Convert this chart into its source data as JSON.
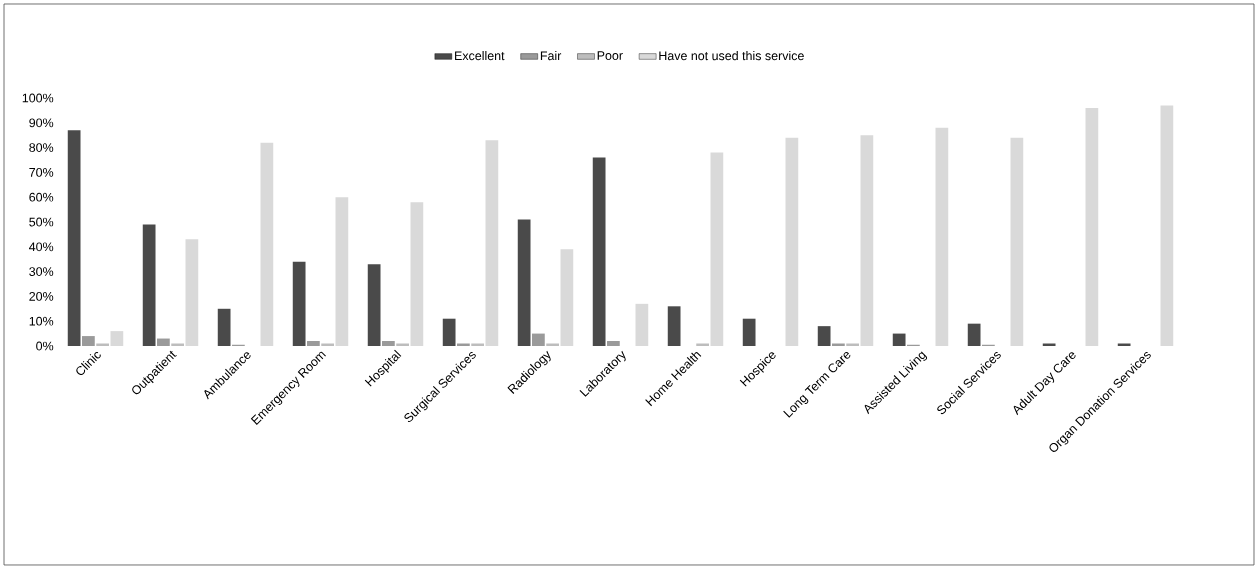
{
  "chart_data": {
    "type": "bar",
    "legend": "top",
    "grid": false,
    "categories": [
      "Clinic",
      "Outpatient",
      "Ambulance",
      "Emergency Room",
      "Hospital",
      "Surgical Services",
      "Radiology",
      "Laboratory",
      "Home Health",
      "Hospice",
      "Long Term Care",
      "Assisted Living",
      "Social Services",
      "Adult Day Care",
      "Organ Donation Services"
    ],
    "series": [
      {
        "name": "Excellent",
        "color": "#4a4a4a",
        "values": [
          87,
          49,
          15,
          34,
          33,
          11,
          51,
          76,
          16,
          11,
          8,
          5,
          9,
          1,
          1
        ]
      },
      {
        "name": "Fair",
        "color": "#9a9a9a",
        "values": [
          4,
          3,
          0.5,
          2,
          2,
          1,
          5,
          2,
          0,
          0,
          1,
          0.5,
          0.5,
          0,
          0
        ]
      },
      {
        "name": "Poor",
        "color": "#bdbdbd",
        "values": [
          1,
          1,
          0,
          1,
          1,
          1,
          1,
          0,
          1,
          0,
          1,
          0,
          0,
          0,
          0
        ]
      },
      {
        "name": "Have not used this service",
        "color": "#d9d9d9",
        "values": [
          6,
          43,
          82,
          60,
          58,
          83,
          39,
          17,
          78,
          84,
          85,
          88,
          84,
          96,
          97
        ]
      }
    ],
    "ylim": [
      0,
      100
    ],
    "yticks": [
      {
        "value": 0,
        "label": "0%"
      },
      {
        "value": 10,
        "label": "10%"
      },
      {
        "value": 20,
        "label": "20%"
      },
      {
        "value": 30,
        "label": "30%"
      },
      {
        "value": 40,
        "label": "40%"
      },
      {
        "value": 50,
        "label": "50%"
      },
      {
        "value": 60,
        "label": "60%"
      },
      {
        "value": 70,
        "label": "70%"
      },
      {
        "value": 80,
        "label": "80%"
      },
      {
        "value": 90,
        "label": "90%"
      },
      {
        "value": 100,
        "label": "100%"
      }
    ]
  }
}
